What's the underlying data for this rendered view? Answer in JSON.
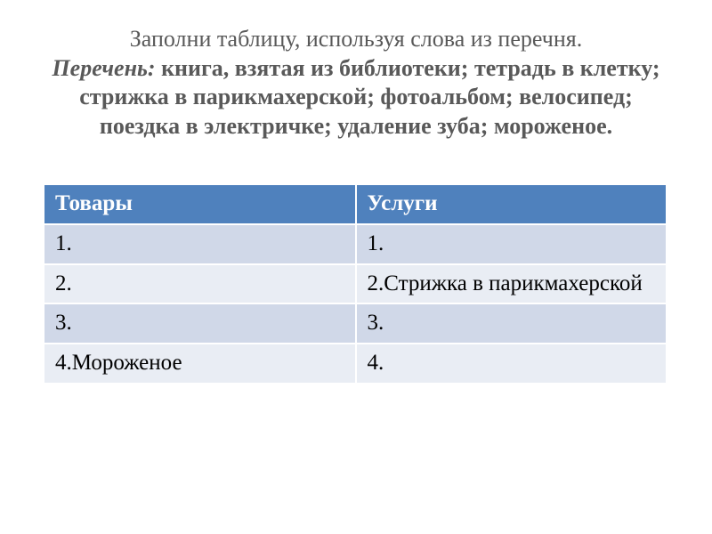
{
  "title": {
    "line1": "Заполни таблицу, используя слова из перечня.",
    "list_label": "Перечень:",
    "list_body": " книга, взятая из библиотеки; тетрадь в клетку; стрижка в парикмахерской; фотоальбом; велосипед; поездка в электричке; удаление зуба; мороженое.",
    "text_color": "#595959",
    "font_size_pt": 20
  },
  "table": {
    "type": "table",
    "header_bg": "#4f81bd",
    "header_fg": "#ffffff",
    "row_odd_bg": "#d0d8e8",
    "row_even_bg": "#e9edf4",
    "cell_fg": "#000000",
    "border_color": "#ffffff",
    "font_size_pt": 19,
    "columns": [
      "Товары",
      "Услуги"
    ],
    "rows": [
      [
        "1.",
        "1."
      ],
      [
        "2.",
        "2.Стрижка в парикмахерской"
      ],
      [
        "3.",
        "3."
      ],
      [
        "4.Мороженое",
        "4."
      ]
    ]
  }
}
